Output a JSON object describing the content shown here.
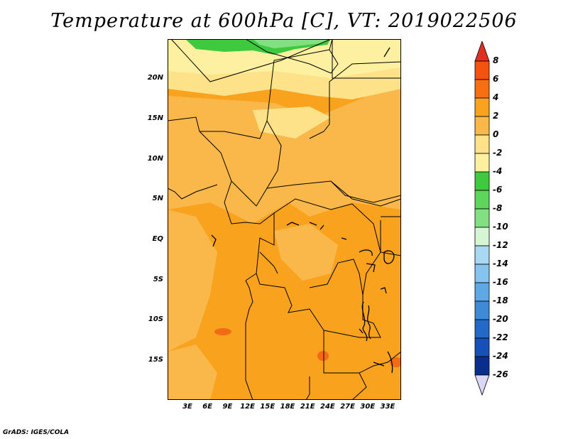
{
  "title": "Temperature at 600hPa [C], VT: 2019022506",
  "footer": "GrADS: IGES/COLA",
  "map": {
    "lat_labels": [
      "20N",
      "15N",
      "10N",
      "5N",
      "EQ",
      "5S",
      "10S",
      "15S"
    ],
    "lon_labels": [
      "3E",
      "6E",
      "9E",
      "12E",
      "15E",
      "18E",
      "21E",
      "24E",
      "27E",
      "30E",
      "33E"
    ],
    "field_colors": {
      "green": "#3fc93f",
      "light_green": "#82e082",
      "pale_yellow": "#fdf0a0",
      "yellow": "#fde28a",
      "light_orange": "#fbb84a",
      "orange": "#f9a21d",
      "deep_orange": "#f36a14"
    }
  },
  "colorbar": {
    "labels": [
      "8",
      "6",
      "4",
      "2",
      "0",
      "-2",
      "-4",
      "-6",
      "-8",
      "-10",
      "-12",
      "-14",
      "-16",
      "-18",
      "-20",
      "-22",
      "-24",
      "-26"
    ],
    "colors": [
      "#e0301f",
      "#f3520f",
      "#f66f10",
      "#f9a21d",
      "#fbb84a",
      "#fde28a",
      "#fdf0a0",
      "#3fc93f",
      "#5ed65e",
      "#82e082",
      "#d5f6d5",
      "#a8d8f2",
      "#85c4ee",
      "#5fa8e6",
      "#3f8ad8",
      "#2468c8",
      "#1650b8",
      "#0a2e8c",
      "#0a0a60",
      "#dad7f7"
    ]
  }
}
